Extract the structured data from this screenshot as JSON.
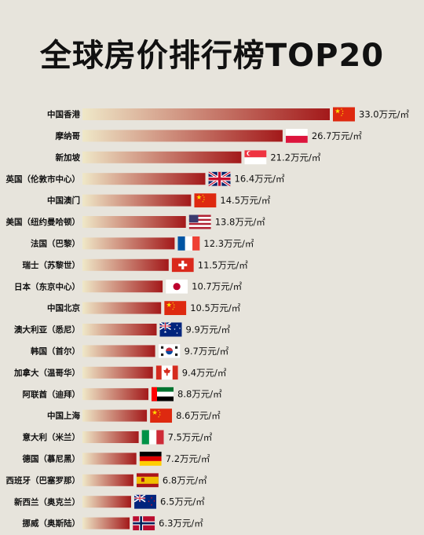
{
  "chart_data": {
    "type": "bar",
    "orientation": "horizontal",
    "title": "全球房价排行榜TOP20",
    "xlabel": "",
    "ylabel": "",
    "xlim": [
      0,
      33
    ],
    "grid": false,
    "legend": "none",
    "categories": [
      "中国香港",
      "摩纳哥",
      "新加坡",
      "英国（伦敦市中心）",
      "中国澳门",
      "美国（纽约曼哈顿）",
      "法国（巴黎）",
      "瑞士（苏黎世）",
      "日本（东京中心）",
      "中国北京",
      "澳大利亚（悉尼）",
      "韩国（首尔）",
      "加拿大（温哥华）",
      "阿联酋（迪拜）",
      "中国上海",
      "意大利（米兰）",
      "德国（慕尼黑）",
      "西班牙（巴塞罗那）",
      "新西兰（奥克兰）",
      "挪威（奥斯陆）"
    ],
    "values": [
      33.0,
      26.7,
      21.2,
      16.4,
      14.5,
      13.8,
      12.3,
      11.5,
      10.7,
      10.5,
      9.9,
      9.7,
      9.4,
      8.8,
      8.6,
      7.5,
      7.2,
      6.8,
      6.5,
      6.3
    ],
    "value_labels": [
      "33.0万元/㎡",
      "26.7万元/㎡",
      "21.2万元/㎡",
      "16.4万元/㎡",
      "14.5万元/㎡",
      "13.8万元/㎡",
      "12.3万元/㎡",
      "11.5万元/㎡",
      "10.7万元/㎡",
      "10.5万元/㎡",
      "9.9万元/㎡",
      "9.7万元/㎡",
      "9.4万元/㎡",
      "8.8万元/㎡",
      "8.6万元/㎡",
      "7.5万元/㎡",
      "7.2万元/㎡",
      "6.8万元/㎡",
      "6.5万元/㎡",
      "6.3万元/㎡"
    ],
    "flags": [
      "cn",
      "pl",
      "sg",
      "gb",
      "cn",
      "us",
      "fr",
      "ch",
      "jp",
      "cn",
      "au",
      "kr",
      "ca",
      "ae",
      "cn",
      "it",
      "de",
      "es",
      "nz",
      "no"
    ],
    "bar_gradient": [
      "#efe8c8",
      "#a3191a"
    ]
  }
}
